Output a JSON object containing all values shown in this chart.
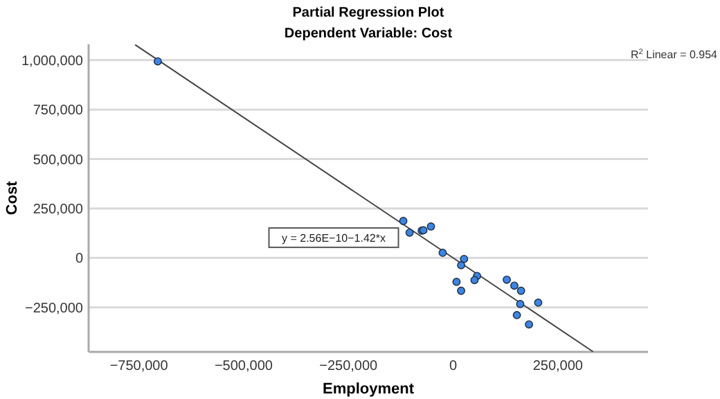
{
  "chart_data": {
    "type": "scatter",
    "title": "Partial Regression Plot",
    "subtitle": "Dependent Variable: Cost",
    "xlabel": "Employment",
    "ylabel": "Cost",
    "xlim": [
      -870000,
      465000
    ],
    "xticks": [
      {
        "value": -750000,
        "label": "−750,000"
      },
      {
        "value": -500000,
        "label": "−500,000"
      },
      {
        "value": -250000,
        "label": "−250,000"
      },
      0,
      {
        "value": 250000,
        "label": "250,000"
      }
    ],
    "ylim": [
      -475000,
      1080000
    ],
    "yticks": [
      {
        "value": -250000,
        "label": "−250,000"
      },
      0,
      {
        "value": 250000,
        "label": "250,000"
      },
      {
        "value": 500000,
        "label": "500,000"
      },
      {
        "value": 750000,
        "label": "750,000"
      },
      {
        "value": 1000000,
        "label": "1,000,000"
      }
    ],
    "grid": "y",
    "series": [
      {
        "color": "#3d85e0",
        "marker": "circle",
        "x": [
          -705000,
          -119000,
          -104000,
          -75000,
          -71000,
          -53000,
          -25000,
          26000,
          19000,
          8000,
          19000,
          57000,
          51000,
          128000,
          146000,
          162000,
          160000,
          203000,
          152000,
          181000
        ],
        "values": [
          994000,
          187000,
          128000,
          138000,
          140000,
          159000,
          26000,
          -5000,
          -37000,
          -121000,
          -166000,
          -91000,
          -112000,
          -110000,
          -140000,
          -166000,
          -233000,
          -226000,
          -289000,
          -336000
        ]
      },
      {
        "type": "line",
        "color": "#444444",
        "marker": "none",
        "x": [
          -759000,
          334000
        ],
        "values": [
          1078000,
          -474000
        ]
      }
    ],
    "annotations": [
      "R$^{2}$ Linear = 0.954",
      "y = 2.56E−10−1.42*x"
    ]
  }
}
